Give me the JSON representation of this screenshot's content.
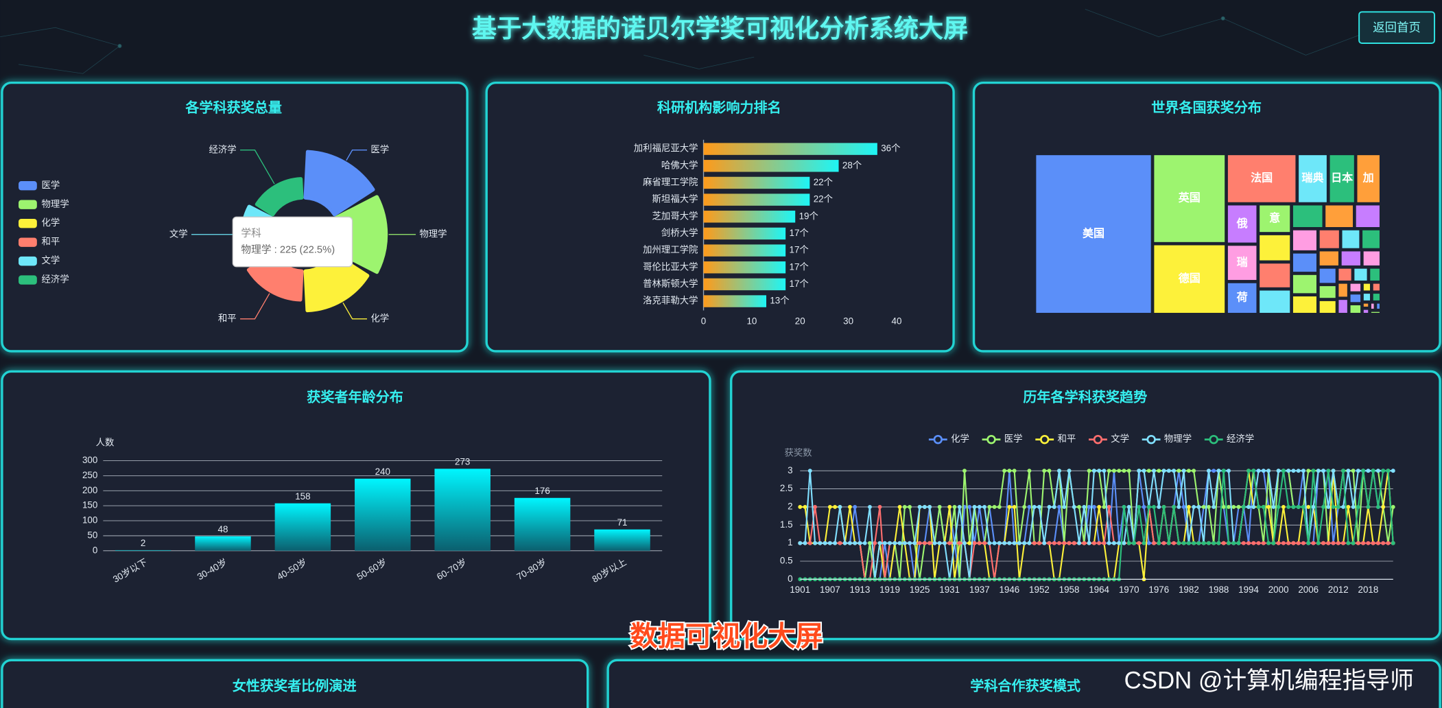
{
  "header": {
    "title": "基于大数据的诺贝尔学奖可视化分析系统大屏",
    "button": "返回首页"
  },
  "chart_data": [
    {
      "type": "pie",
      "rose": true,
      "title": "各学科获奖总量",
      "categories": [
        "医学",
        "物理学",
        "化学",
        "和平",
        "文学",
        "经济学"
      ],
      "values": [
        227,
        225,
        194,
        141,
        120,
        93
      ],
      "colors": [
        "#5b8ff9",
        "#9df46f",
        "#fdf13a",
        "#ff7f6e",
        "#6ee7f9",
        "#2cbf7c"
      ],
      "tooltip": {
        "title": "学科",
        "text": "物理学 : 225 (22.5%)"
      }
    },
    {
      "type": "bar",
      "orientation": "horizontal",
      "title": "科研机构影响力排名",
      "categories": [
        "加利福尼亚大学",
        "哈佛大学",
        "麻省理工学院",
        "斯坦福大学",
        "芝加哥大学",
        "剑桥大学",
        "加州理工学院",
        "哥伦比亚大学",
        "普林斯顿大学",
        "洛克菲勒大学"
      ],
      "values": [
        36,
        28,
        22,
        22,
        19,
        17,
        17,
        17,
        17,
        13
      ],
      "value_labels": [
        "36个",
        "28个",
        "22个",
        "22个",
        "19个",
        "17个",
        "17个",
        "17个",
        "17个",
        "13个"
      ],
      "xlim": [
        0,
        40
      ],
      "xticks": [
        0,
        10,
        20,
        30,
        40
      ],
      "colors": [
        "#ff9a1a",
        "#1ef5f5"
      ]
    },
    {
      "type": "treemap",
      "title": "世界各国获奖分布",
      "categories": [
        "美国",
        "英国",
        "德国",
        "法国",
        "瑞典",
        "日本",
        "加",
        "俄",
        "瑞",
        "荷",
        "意",
        null,
        null,
        null,
        null,
        null,
        null,
        null,
        null,
        null,
        null,
        null,
        null,
        null,
        null,
        null,
        null,
        null,
        null,
        null,
        null,
        null,
        null,
        null,
        null,
        null,
        null,
        null,
        null,
        null,
        null,
        null,
        null,
        null,
        null,
        null,
        null
      ],
      "values": [
        400,
        140,
        110,
        75,
        33,
        29,
        27,
        27,
        25,
        22,
        21,
        20,
        19,
        18,
        17,
        16,
        14,
        13,
        12,
        12,
        11,
        10,
        9,
        9,
        8,
        8,
        7,
        7,
        6,
        6,
        5,
        5,
        4,
        4,
        4,
        3,
        3,
        3,
        2,
        2,
        2,
        2,
        1,
        1,
        1,
        1,
        1
      ],
      "palette": [
        "#5b8ff9",
        "#9df46f",
        "#fdf13a",
        "#ff7f6e",
        "#6ee7f9",
        "#2cbf7c",
        "#ff9f3a",
        "#c77dff",
        "#ff9de2"
      ]
    },
    {
      "type": "bar",
      "orientation": "vertical",
      "title": "获奖者年龄分布",
      "ylabel": "人数",
      "categories": [
        "30岁以下",
        "30-40岁",
        "40-50岁",
        "50-60岁",
        "60-70岁",
        "70-80岁",
        "80岁以上"
      ],
      "values": [
        2,
        48,
        158,
        240,
        273,
        176,
        71
      ],
      "ylim": [
        0,
        300
      ],
      "yticks": [
        0,
        50,
        100,
        150,
        200,
        250,
        300
      ],
      "grid": true,
      "colors": [
        "#00f6ff",
        "#0b5f6e"
      ]
    },
    {
      "type": "line",
      "title": "历年各学科获奖趋势",
      "ylabel": "获奖数",
      "categories": [
        "1901",
        null,
        null,
        null,
        null,
        null,
        "1907",
        null,
        null,
        null,
        null,
        null,
        "1913",
        null,
        null,
        null,
        null,
        null,
        "1919",
        null,
        null,
        null,
        null,
        null,
        "1925",
        null,
        null,
        null,
        null,
        null,
        "1931",
        null,
        null,
        null,
        null,
        null,
        "1937",
        null,
        null,
        null,
        null,
        null,
        "1946",
        null,
        null,
        null,
        null,
        null,
        "1952",
        null,
        null,
        null,
        null,
        null,
        "1958",
        null,
        null,
        null,
        null,
        null,
        "1964",
        null,
        null,
        null,
        null,
        null,
        "1970",
        null,
        null,
        null,
        null,
        null,
        "1976",
        null,
        null,
        null,
        null,
        null,
        "1982",
        null,
        null,
        null,
        null,
        null,
        "1988",
        null,
        null,
        null,
        null,
        null,
        "1994",
        null,
        null,
        null,
        null,
        null,
        "2000",
        null,
        null,
        null,
        null,
        null,
        "2006",
        null,
        null,
        null,
        null,
        null,
        "2012",
        null,
        null,
        null,
        null,
        null,
        "2018",
        null,
        null,
        null,
        null,
        null
      ],
      "ylim": [
        0,
        3
      ],
      "yticks": [
        0,
        0.5,
        1,
        1.5,
        2,
        2.5,
        3
      ],
      "grid": true,
      "series": [
        {
          "name": "化学",
          "color": "#5b8ff9",
          "values": [
            1,
            1,
            1,
            1,
            1,
            1,
            1,
            1,
            1,
            1,
            1,
            2,
            1,
            0,
            1,
            0,
            0,
            1,
            0,
            1,
            1,
            1,
            1,
            0,
            1,
            1,
            2,
            1,
            2,
            1,
            2,
            1,
            0,
            2,
            2,
            1,
            2,
            1,
            2,
            1,
            1,
            1,
            3,
            1,
            1,
            1,
            2,
            2,
            2,
            1,
            1,
            1,
            2,
            1,
            1,
            1,
            1,
            1,
            2,
            2,
            1,
            1,
            1,
            3,
            1,
            2,
            1,
            1,
            3,
            2,
            1,
            1,
            1,
            1,
            1,
            2,
            3,
            2,
            1,
            1,
            1,
            2,
            3,
            3,
            3,
            2,
            1,
            1,
            2,
            2,
            1,
            3,
            3,
            3,
            2,
            1,
            3,
            3,
            3,
            2,
            2,
            3,
            1,
            1,
            3,
            3,
            3,
            1,
            2,
            3,
            3,
            3,
            3,
            3,
            3,
            3,
            2,
            2,
            3,
            3
          ]
        },
        {
          "name": "医学",
          "color": "#9df46f",
          "values": [
            1,
            1,
            1,
            1,
            1,
            1,
            1,
            1,
            1,
            1,
            1,
            1,
            1,
            0,
            1,
            0,
            0,
            0,
            1,
            1,
            0,
            2,
            2,
            1,
            0,
            1,
            1,
            1,
            2,
            1,
            1,
            2,
            0,
            3,
            1,
            2,
            1,
            1,
            2,
            2,
            2,
            3,
            3,
            3,
            1,
            2,
            3,
            1,
            1,
            3,
            3,
            2,
            3,
            1,
            3,
            2,
            2,
            1,
            3,
            3,
            3,
            2,
            3,
            3,
            3,
            3,
            3,
            1,
            3,
            3,
            3,
            3,
            3,
            3,
            3,
            3,
            3,
            3,
            3,
            3,
            2,
            2,
            2,
            1,
            3,
            2,
            2,
            2,
            2,
            2,
            2,
            3,
            2,
            1,
            3,
            1,
            3,
            3,
            3,
            2,
            2,
            2,
            3,
            3,
            3,
            3,
            1,
            3,
            2,
            3,
            3,
            3,
            1,
            3,
            2,
            3,
            3,
            2,
            1,
            2
          ]
        },
        {
          "name": "和平",
          "color": "#fdf13a",
          "values": [
            2,
            2,
            1,
            1,
            1,
            1,
            2,
            2,
            2,
            1,
            2,
            1,
            1,
            0,
            0,
            0,
            1,
            0,
            0,
            1,
            2,
            1,
            0,
            0,
            2,
            2,
            2,
            0,
            1,
            1,
            2,
            0,
            1,
            1,
            1,
            1,
            1,
            1,
            0,
            0,
            1,
            1,
            2,
            2,
            0,
            1,
            1,
            1,
            1,
            1,
            1,
            0,
            0,
            1,
            1,
            1,
            1,
            1,
            1,
            1,
            2,
            1,
            0,
            0,
            1,
            1,
            1,
            1,
            1,
            0,
            2,
            1,
            1,
            2,
            1,
            2,
            1,
            1,
            2,
            1,
            1,
            1,
            1,
            1,
            1,
            1,
            1,
            1,
            1,
            2,
            3,
            2,
            2,
            2,
            2,
            1,
            1,
            2,
            1,
            1,
            1,
            2,
            2,
            2,
            1,
            1,
            1,
            3,
            1,
            1,
            2,
            1,
            1,
            1,
            2,
            1,
            1,
            2,
            3,
            1
          ]
        },
        {
          "name": "文学",
          "color": "#ff6e6e",
          "values": [
            1,
            1,
            1,
            2,
            1,
            1,
            1,
            1,
            1,
            1,
            1,
            1,
            1,
            0,
            0,
            1,
            2,
            0,
            1,
            1,
            1,
            1,
            1,
            1,
            1,
            1,
            1,
            1,
            1,
            1,
            1,
            1,
            1,
            1,
            0,
            1,
            1,
            1,
            1,
            0,
            1,
            1,
            1,
            1,
            1,
            1,
            1,
            1,
            1,
            1,
            1,
            1,
            1,
            1,
            1,
            1,
            1,
            1,
            1,
            1,
            1,
            1,
            2,
            1,
            1,
            1,
            1,
            1,
            1,
            1,
            2,
            1,
            1,
            1,
            1,
            1,
            1,
            1,
            1,
            1,
            1,
            1,
            1,
            1,
            1,
            1,
            1,
            1,
            1,
            1,
            1,
            1,
            1,
            1,
            1,
            1,
            1,
            1,
            1,
            1,
            1,
            1,
            1,
            1,
            1,
            1,
            1,
            1,
            1,
            1,
            1,
            1,
            1,
            1,
            1,
            1,
            1,
            1,
            1,
            1
          ]
        },
        {
          "name": "物理学",
          "color": "#80dfff",
          "values": [
            1,
            1,
            3,
            1,
            1,
            1,
            1,
            1,
            2,
            1,
            1,
            1,
            1,
            1,
            2,
            0,
            1,
            1,
            1,
            1,
            1,
            1,
            1,
            1,
            2,
            2,
            2,
            1,
            1,
            1,
            0,
            1,
            2,
            1,
            0,
            2,
            2,
            2,
            1,
            1,
            1,
            1,
            1,
            1,
            1,
            1,
            1,
            2,
            2,
            1,
            2,
            2,
            3,
            2,
            3,
            2,
            1,
            2,
            1,
            3,
            3,
            3,
            1,
            1,
            1,
            1,
            2,
            1,
            3,
            3,
            2,
            3,
            2,
            3,
            3,
            3,
            2,
            3,
            1,
            2,
            2,
            1,
            3,
            2,
            3,
            3,
            3,
            1,
            1,
            2,
            2,
            2,
            3,
            3,
            3,
            2,
            3,
            3,
            3,
            3,
            3,
            3,
            1,
            2,
            3,
            3,
            2,
            3,
            2,
            2,
            3,
            2,
            3,
            3,
            3,
            3,
            3,
            3,
            3,
            3
          ]
        },
        {
          "name": "经济学",
          "color": "#2cbf7c",
          "values": [
            0,
            0,
            0,
            0,
            0,
            0,
            0,
            0,
            0,
            0,
            0,
            0,
            0,
            0,
            0,
            0,
            0,
            0,
            0,
            0,
            0,
            0,
            0,
            0,
            0,
            0,
            0,
            0,
            0,
            0,
            0,
            0,
            0,
            0,
            0,
            0,
            0,
            0,
            0,
            0,
            0,
            0,
            0,
            0,
            0,
            0,
            0,
            0,
            0,
            0,
            0,
            0,
            0,
            0,
            0,
            0,
            0,
            0,
            0,
            0,
            0,
            0,
            0,
            0,
            0,
            2,
            1,
            1,
            2,
            1,
            2,
            2,
            1,
            2,
            1,
            2,
            1,
            1,
            1,
            1,
            1,
            1,
            1,
            1,
            1,
            3,
            1,
            1,
            1,
            2,
            3,
            3,
            2,
            2,
            1,
            1,
            2,
            3,
            2,
            2,
            2,
            2,
            1,
            3,
            1,
            2,
            3,
            2,
            2,
            3,
            1,
            1,
            2,
            3,
            2,
            3,
            2,
            3,
            3,
            1
          ]
        }
      ]
    }
  ],
  "panels": [
    {
      "title": "女性获奖者比例演进"
    },
    {
      "title": "学科合作获奖模式"
    }
  ],
  "overlay": {
    "caption": "数据可视化大屏",
    "watermark": "CSDN @计算机编程指导师"
  }
}
